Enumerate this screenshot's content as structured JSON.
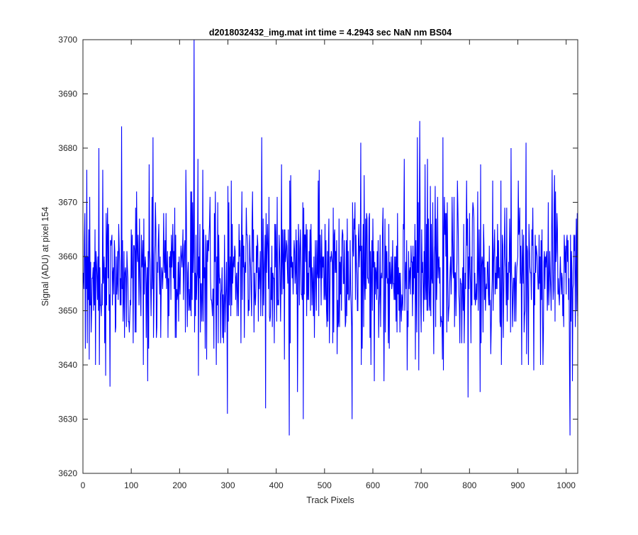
{
  "chart_data": {
    "type": "line",
    "title": "d2018032432_img.mat int time = 4.2943 sec  NaN nm BS04",
    "xlabel": "Track Pixels",
    "ylabel": "Signal (ADU) at pixel 154",
    "xlim": [
      0,
      1024
    ],
    "ylim": [
      3620,
      3700
    ],
    "xticks": [
      0,
      100,
      200,
      300,
      400,
      500,
      600,
      700,
      800,
      900,
      1000
    ],
    "yticks": [
      3620,
      3630,
      3640,
      3650,
      3660,
      3670,
      3680,
      3690,
      3700
    ],
    "grid": false,
    "legend": "none",
    "series": [
      {
        "color": "#0000ff",
        "x_start": 1,
        "x_step": 1,
        "points": 1024,
        "mean": 3657,
        "noise": 7.5,
        "low": 3627,
        "high": 3700,
        "extremes": [
          {
            "x": 8,
            "y": 3676
          },
          {
            "x": 13,
            "y": 3641
          },
          {
            "x": 56,
            "y": 3636
          },
          {
            "x": 80,
            "y": 3684
          },
          {
            "x": 145,
            "y": 3682
          },
          {
            "x": 230,
            "y": 3700
          },
          {
            "x": 238,
            "y": 3678
          },
          {
            "x": 299,
            "y": 3631
          },
          {
            "x": 378,
            "y": 3632
          },
          {
            "x": 427,
            "y": 3627
          },
          {
            "x": 444,
            "y": 3635
          },
          {
            "x": 456,
            "y": 3630
          },
          {
            "x": 557,
            "y": 3630
          },
          {
            "x": 575,
            "y": 3681
          },
          {
            "x": 665,
            "y": 3678
          },
          {
            "x": 697,
            "y": 3685
          },
          {
            "x": 822,
            "y": 3635
          },
          {
            "x": 886,
            "y": 3680
          },
          {
            "x": 917,
            "y": 3681
          },
          {
            "x": 1008,
            "y": 3627
          },
          {
            "x": 1013,
            "y": 3637
          }
        ]
      }
    ]
  }
}
